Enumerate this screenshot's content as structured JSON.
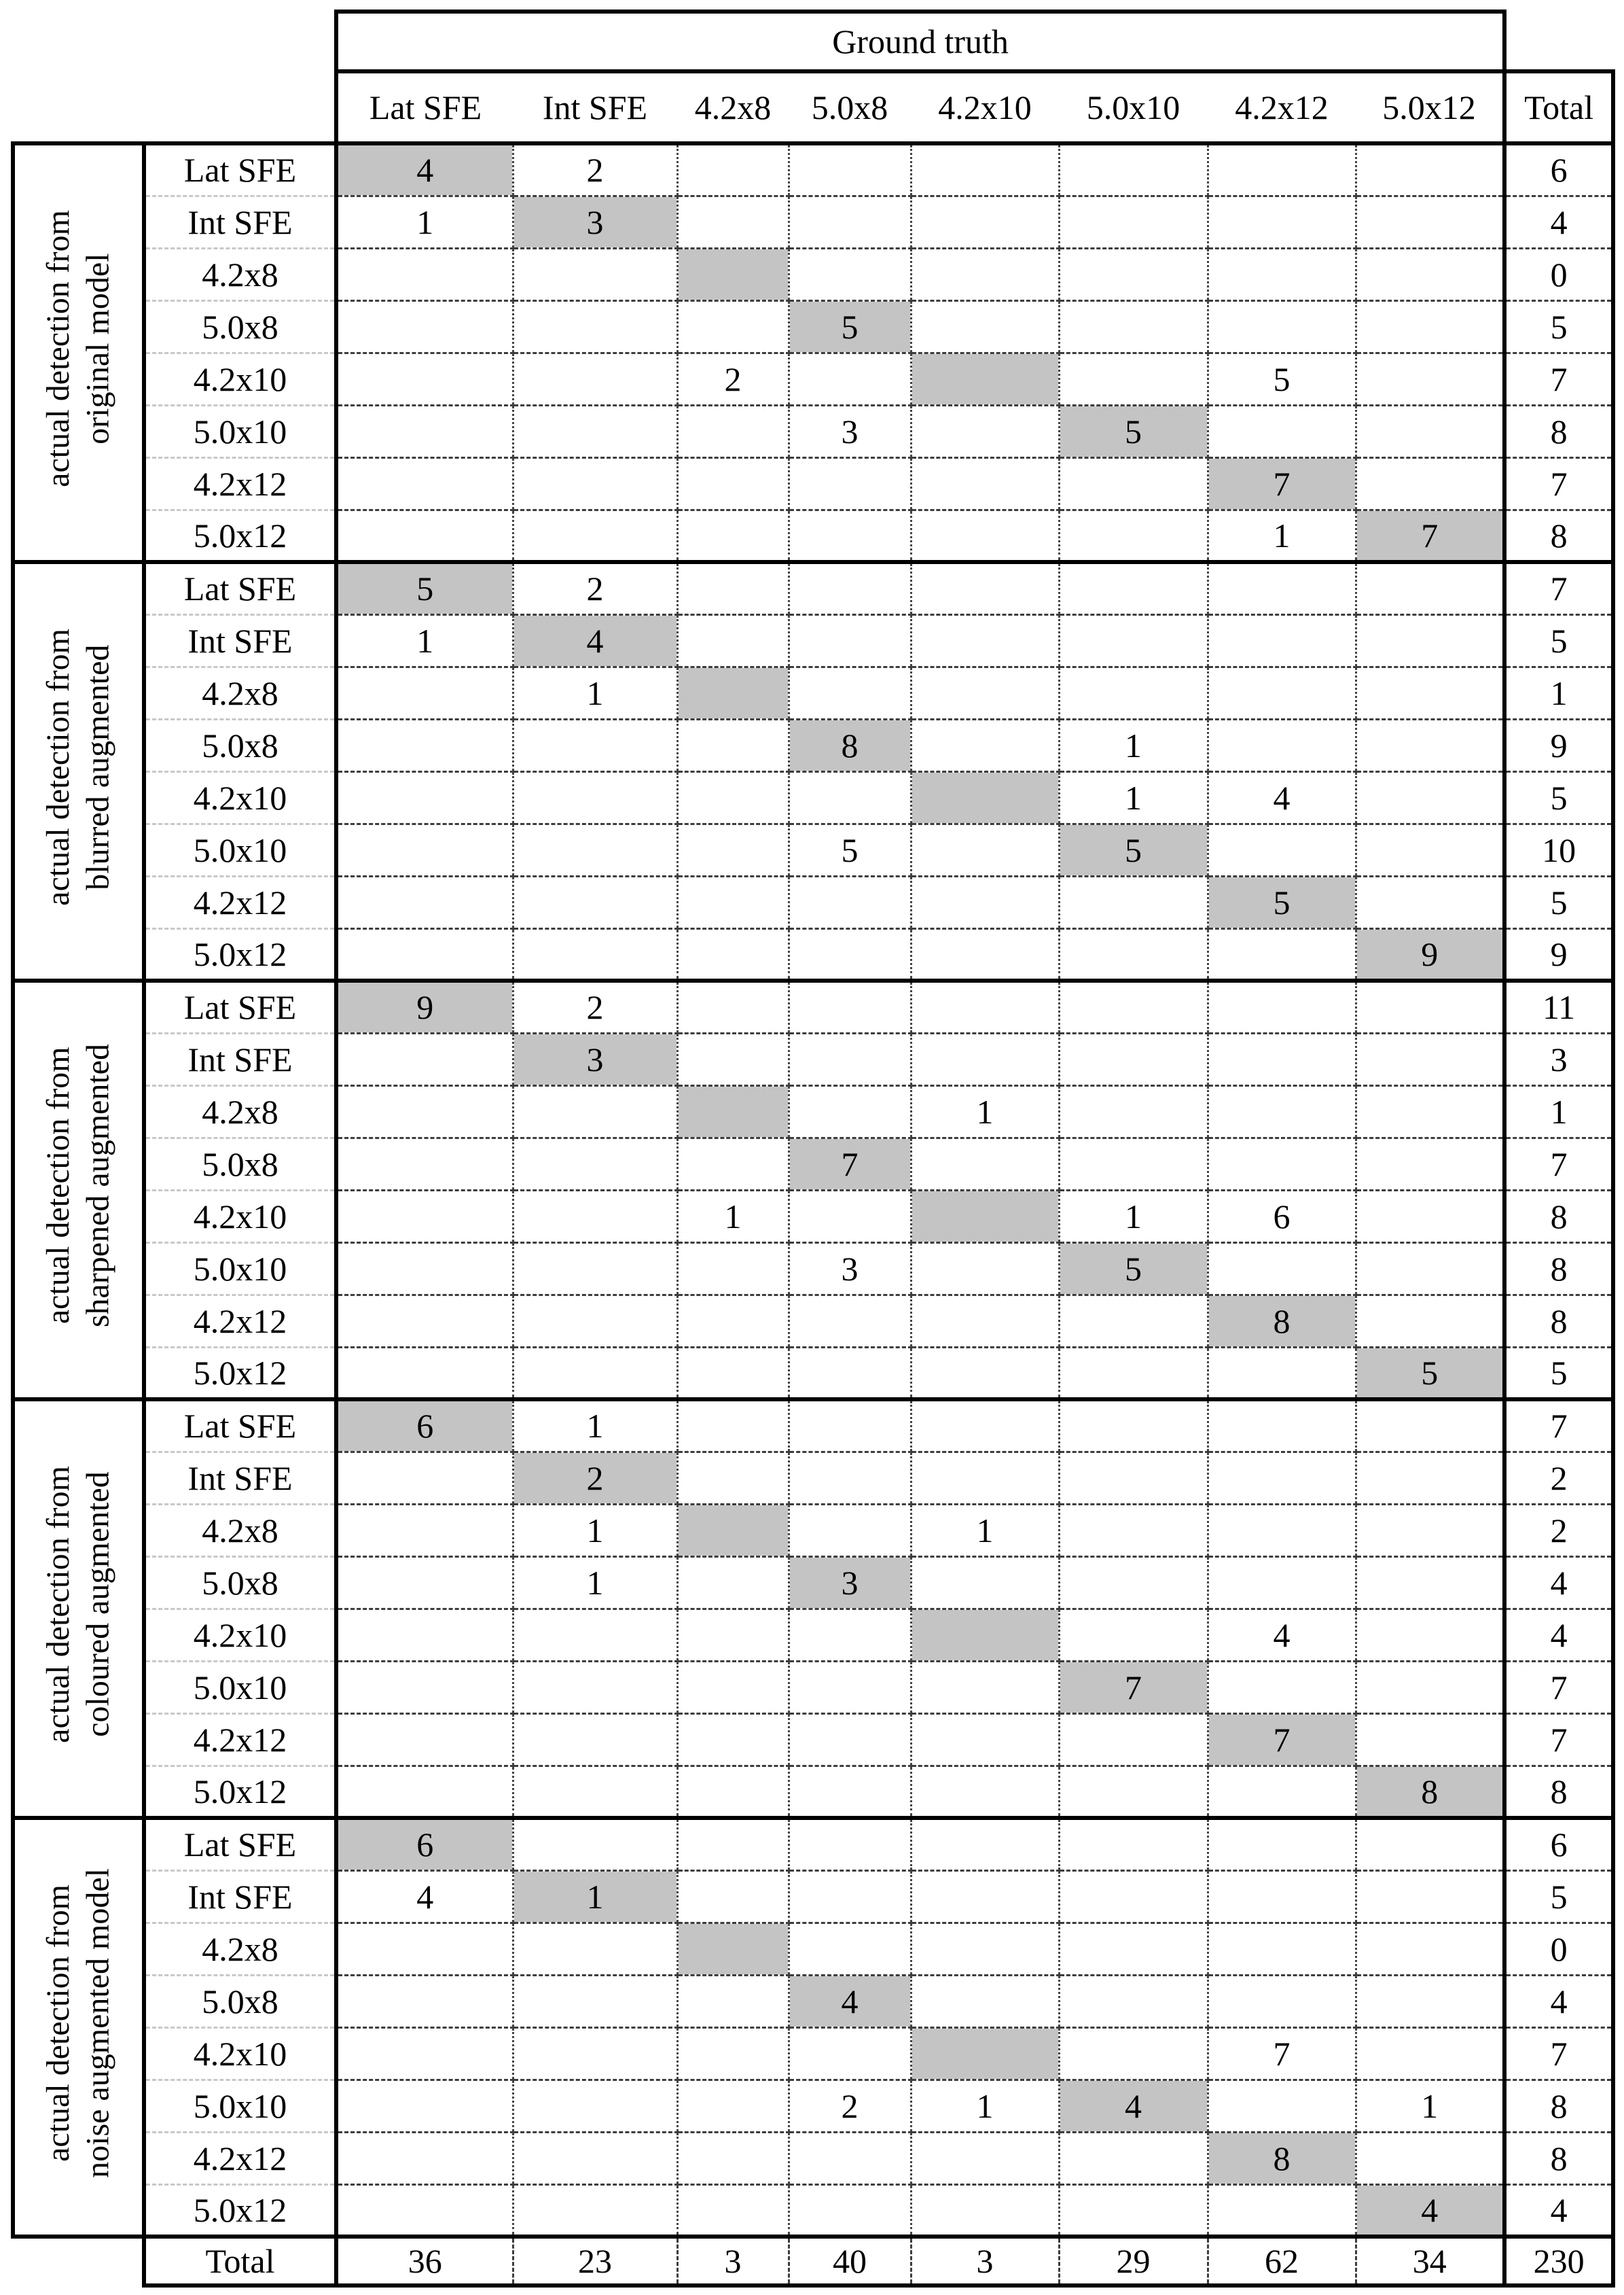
{
  "table": {
    "ground_truth_header": "Ground truth",
    "total_col_header": "Total",
    "column_headers": [
      "Lat SFE",
      "Int SFE",
      "4.2x8",
      "5.0x8",
      "4.2x10",
      "5.0x10",
      "4.2x12",
      "5.0x12"
    ],
    "row_labels": [
      "Lat SFE",
      "Int SFE",
      "4.2x8",
      "5.0x8",
      "4.2x10",
      "5.0x10",
      "4.2x12",
      "5.0x12"
    ],
    "highlight_color": "#c4c4c4",
    "blocks": [
      {
        "label_lines": [
          "actual detection from",
          "original model"
        ],
        "rows": [
          {
            "cells": [
              "4",
              "2",
              "",
              "",
              "",
              "",
              "",
              ""
            ],
            "total": "6"
          },
          {
            "cells": [
              "1",
              "3",
              "",
              "",
              "",
              "",
              "",
              ""
            ],
            "total": "4"
          },
          {
            "cells": [
              "",
              "",
              "",
              "",
              "",
              "",
              "",
              ""
            ],
            "total": "0"
          },
          {
            "cells": [
              "",
              "",
              "",
              "5",
              "",
              "",
              "",
              ""
            ],
            "total": "5"
          },
          {
            "cells": [
              "",
              "",
              "2",
              "",
              "",
              "",
              "5",
              ""
            ],
            "total": "7"
          },
          {
            "cells": [
              "",
              "",
              "",
              "3",
              "",
              "5",
              "",
              ""
            ],
            "total": "8"
          },
          {
            "cells": [
              "",
              "",
              "",
              "",
              "",
              "",
              "7",
              ""
            ],
            "total": "7"
          },
          {
            "cells": [
              "",
              "",
              "",
              "",
              "",
              "",
              "1",
              "7"
            ],
            "total": "8"
          }
        ]
      },
      {
        "label_lines": [
          "actual detection from",
          "blurred augmented"
        ],
        "rows": [
          {
            "cells": [
              "5",
              "2",
              "",
              "",
              "",
              "",
              "",
              ""
            ],
            "total": "7"
          },
          {
            "cells": [
              "1",
              "4",
              "",
              "",
              "",
              "",
              "",
              ""
            ],
            "total": "5"
          },
          {
            "cells": [
              "",
              "1",
              "",
              "",
              "",
              "",
              "",
              ""
            ],
            "total": "1"
          },
          {
            "cells": [
              "",
              "",
              "",
              "8",
              "",
              "1",
              "",
              ""
            ],
            "total": "9"
          },
          {
            "cells": [
              "",
              "",
              "",
              "",
              "",
              "1",
              "4",
              ""
            ],
            "total": "5"
          },
          {
            "cells": [
              "",
              "",
              "",
              "5",
              "",
              "5",
              "",
              ""
            ],
            "total": "10"
          },
          {
            "cells": [
              "",
              "",
              "",
              "",
              "",
              "",
              "5",
              ""
            ],
            "total": "5"
          },
          {
            "cells": [
              "",
              "",
              "",
              "",
              "",
              "",
              "",
              "9"
            ],
            "total": "9"
          }
        ]
      },
      {
        "label_lines": [
          "actual detection from",
          "sharpened augmented"
        ],
        "rows": [
          {
            "cells": [
              "9",
              "2",
              "",
              "",
              "",
              "",
              "",
              ""
            ],
            "total": "11"
          },
          {
            "cells": [
              "",
              "3",
              "",
              "",
              "",
              "",
              "",
              ""
            ],
            "total": "3"
          },
          {
            "cells": [
              "",
              "",
              "",
              "",
              "1",
              "",
              "",
              ""
            ],
            "total": "1"
          },
          {
            "cells": [
              "",
              "",
              "",
              "7",
              "",
              "",
              "",
              ""
            ],
            "total": "7"
          },
          {
            "cells": [
              "",
              "",
              "1",
              "",
              "",
              "1",
              "6",
              ""
            ],
            "total": "8"
          },
          {
            "cells": [
              "",
              "",
              "",
              "3",
              "",
              "5",
              "",
              ""
            ],
            "total": "8"
          },
          {
            "cells": [
              "",
              "",
              "",
              "",
              "",
              "",
              "8",
              ""
            ],
            "total": "8"
          },
          {
            "cells": [
              "",
              "",
              "",
              "",
              "",
              "",
              "",
              "5"
            ],
            "total": "5"
          }
        ]
      },
      {
        "label_lines": [
          "actual detection from",
          "coloured augmented"
        ],
        "rows": [
          {
            "cells": [
              "6",
              "1",
              "",
              "",
              "",
              "",
              "",
              ""
            ],
            "total": "7"
          },
          {
            "cells": [
              "",
              "2",
              "",
              "",
              "",
              "",
              "",
              ""
            ],
            "total": "2"
          },
          {
            "cells": [
              "",
              "1",
              "",
              "",
              "1",
              "",
              "",
              ""
            ],
            "total": "2"
          },
          {
            "cells": [
              "",
              "1",
              "",
              "3",
              "",
              "",
              "",
              ""
            ],
            "total": "4"
          },
          {
            "cells": [
              "",
              "",
              "",
              "",
              "",
              "",
              "4",
              ""
            ],
            "total": "4"
          },
          {
            "cells": [
              "",
              "",
              "",
              "",
              "",
              "7",
              "",
              ""
            ],
            "total": "7"
          },
          {
            "cells": [
              "",
              "",
              "",
              "",
              "",
              "",
              "7",
              ""
            ],
            "total": "7"
          },
          {
            "cells": [
              "",
              "",
              "",
              "",
              "",
              "",
              "",
              "8"
            ],
            "total": "8"
          }
        ]
      },
      {
        "label_lines": [
          "actual detection from",
          "noise augmented model"
        ],
        "rows": [
          {
            "cells": [
              "6",
              "",
              "",
              "",
              "",
              "",
              "",
              ""
            ],
            "total": "6"
          },
          {
            "cells": [
              "4",
              "1",
              "",
              "",
              "",
              "",
              "",
              ""
            ],
            "total": "5"
          },
          {
            "cells": [
              "",
              "",
              "",
              "",
              "",
              "",
              "",
              ""
            ],
            "total": "0"
          },
          {
            "cells": [
              "",
              "",
              "",
              "4",
              "",
              "",
              "",
              ""
            ],
            "total": "4"
          },
          {
            "cells": [
              "",
              "",
              "",
              "",
              "",
              "",
              "7",
              ""
            ],
            "total": "7"
          },
          {
            "cells": [
              "",
              "",
              "",
              "2",
              "1",
              "4",
              "",
              "1"
            ],
            "total": "8"
          },
          {
            "cells": [
              "",
              "",
              "",
              "",
              "",
              "",
              "8",
              ""
            ],
            "total": "8"
          },
          {
            "cells": [
              "",
              "",
              "",
              "",
              "",
              "",
              "",
              "4"
            ],
            "total": "4"
          }
        ]
      }
    ],
    "totals_row": {
      "label": "Total",
      "values": [
        "36",
        "23",
        "3",
        "40",
        "3",
        "29",
        "62",
        "34"
      ],
      "grand_total": "230"
    }
  }
}
